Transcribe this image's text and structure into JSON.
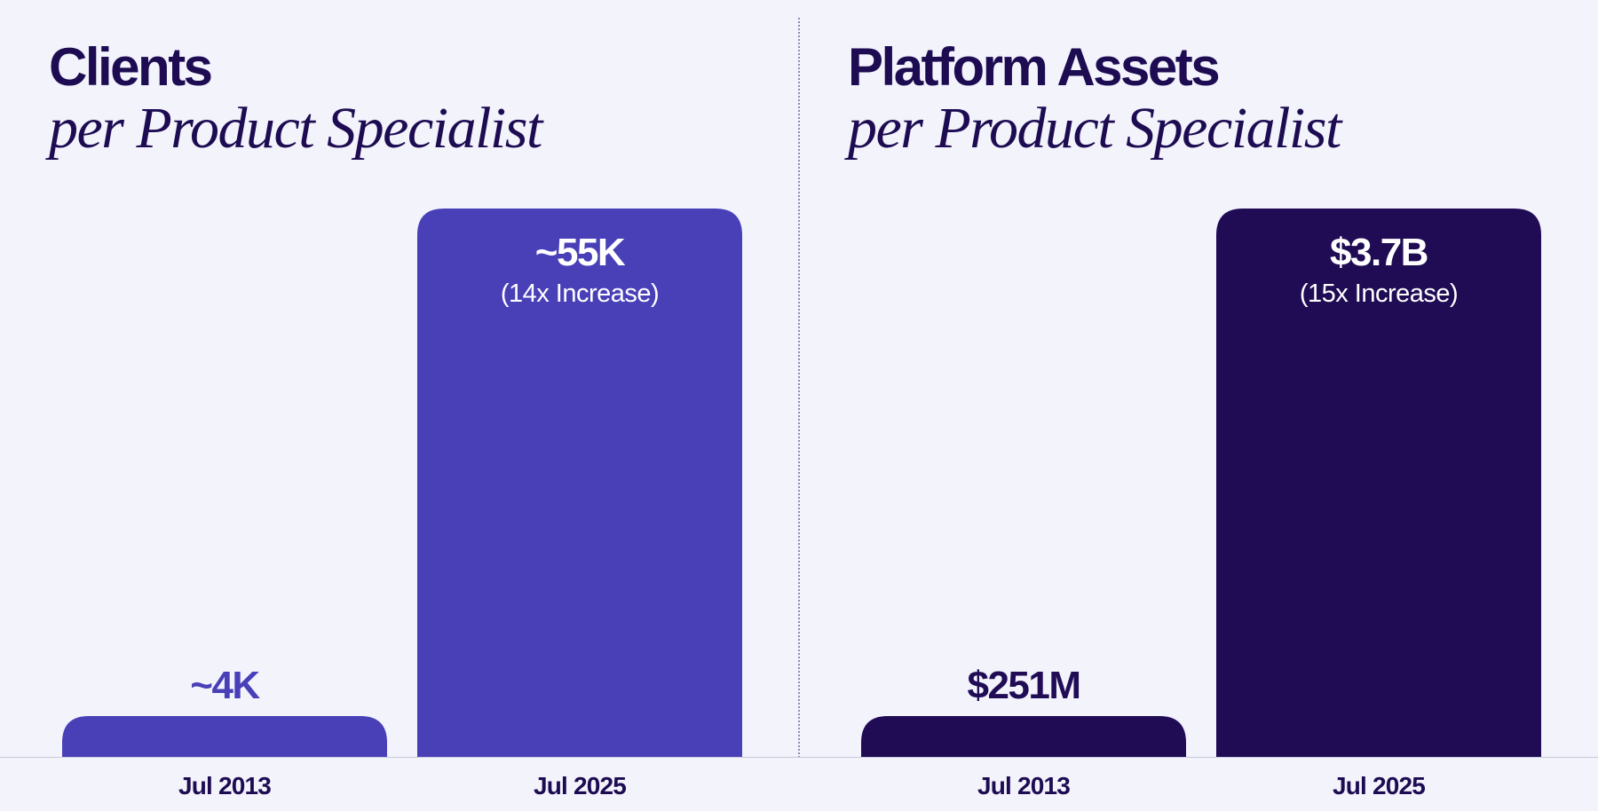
{
  "colors": {
    "background": "#f3f3fc",
    "text_dark": "#1d0c52",
    "clients_bar": "#4940b8",
    "assets_bar": "#200c55",
    "white": "#ffffff"
  },
  "chart_data": [
    {
      "type": "bar",
      "title": "Clients",
      "subtitle": "per Product Specialist",
      "categories": [
        "Jul 2013",
        "Jul 2025"
      ],
      "values": [
        4000,
        55000
      ],
      "value_labels": [
        "~4K",
        "~55K"
      ],
      "notes": [
        "",
        "(14x Increase)"
      ],
      "units": "clients",
      "ylim": [
        0,
        55000
      ],
      "grid": false,
      "legend": "none"
    },
    {
      "type": "bar",
      "title": "Platform Assets",
      "subtitle": "per Product Specialist",
      "categories": [
        "Jul 2013",
        "Jul 2025"
      ],
      "values": [
        251,
        3700
      ],
      "value_labels": [
        "$251M",
        "$3.7B"
      ],
      "notes": [
        "",
        "(15x Increase)"
      ],
      "units": "USD millions",
      "ylim": [
        0,
        3700
      ],
      "grid": false,
      "legend": "none"
    }
  ]
}
